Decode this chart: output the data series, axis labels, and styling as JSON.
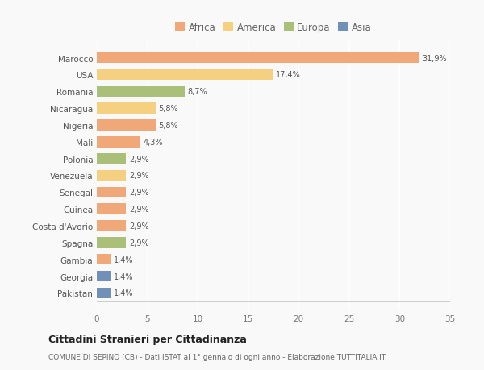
{
  "countries": [
    "Marocco",
    "USA",
    "Romania",
    "Nicaragua",
    "Nigeria",
    "Mali",
    "Polonia",
    "Venezuela",
    "Senegal",
    "Guinea",
    "Costa d'Avorio",
    "Spagna",
    "Gambia",
    "Georgia",
    "Pakistan"
  ],
  "values": [
    31.9,
    17.4,
    8.7,
    5.8,
    5.8,
    4.3,
    2.9,
    2.9,
    2.9,
    2.9,
    2.9,
    2.9,
    1.4,
    1.4,
    1.4
  ],
  "labels": [
    "31,9%",
    "17,4%",
    "8,7%",
    "5,8%",
    "5,8%",
    "4,3%",
    "2,9%",
    "2,9%",
    "2,9%",
    "2,9%",
    "2,9%",
    "2,9%",
    "1,4%",
    "1,4%",
    "1,4%"
  ],
  "colors": [
    "#F0A878",
    "#F5D080",
    "#AABF78",
    "#F5D080",
    "#F0A878",
    "#F0A878",
    "#AABF78",
    "#F5D080",
    "#F0A878",
    "#F0A878",
    "#F0A878",
    "#AABF78",
    "#F0A878",
    "#7090B8",
    "#7090B8"
  ],
  "legend_labels": [
    "Africa",
    "America",
    "Europa",
    "Asia"
  ],
  "legend_colors": [
    "#F0A878",
    "#F5D080",
    "#AABF78",
    "#7090B8"
  ],
  "title": "Cittadini Stranieri per Cittadinanza",
  "subtitle": "COMUNE DI SEPINO (CB) - Dati ISTAT al 1° gennaio di ogni anno - Elaborazione TUTTITALIA.IT",
  "xlim": [
    0,
    35
  ],
  "xticks": [
    0,
    5,
    10,
    15,
    20,
    25,
    30,
    35
  ],
  "bg_color": "#f9f9f9",
  "grid_color": "#ffffff",
  "bar_height": 0.65
}
